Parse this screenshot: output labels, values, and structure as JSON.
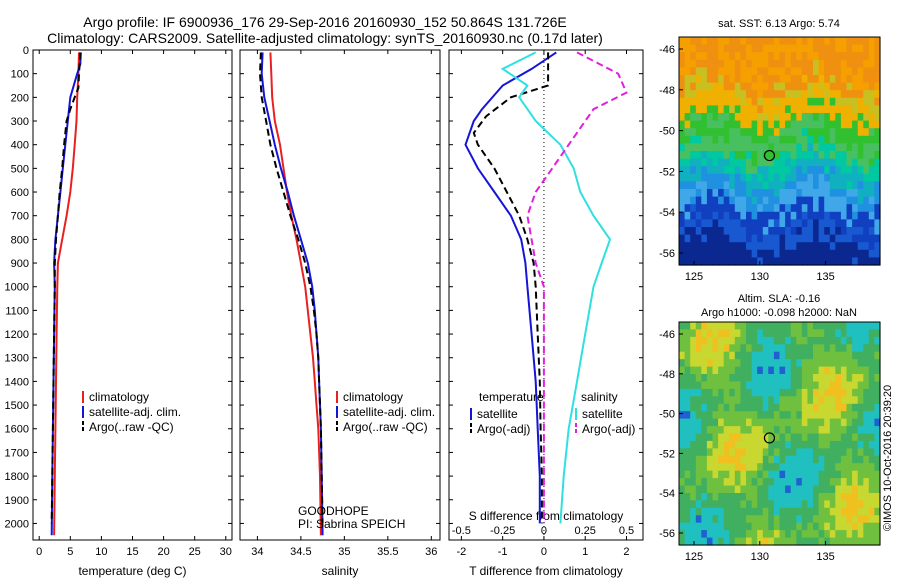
{
  "header": {
    "title_line1": "Argo profile: IF 6900936_176 29-Sep-2016 20160930_152 50.864S 131.726E",
    "title_line2": "Climatology: CARS2009. Satellite-adjusted climatology: synTS_20160930.nc (0.17d later)"
  },
  "colors": {
    "climatology": "#e82020",
    "satellite": "#1515d8",
    "argo": "#000000",
    "sal_satellite": "#30e0e0",
    "sal_argo": "#e020e0"
  },
  "chart_data": [
    {
      "type": "line",
      "xlabel": "temperature (deg C)",
      "ylabel": "",
      "xlim": [
        -1,
        31
      ],
      "ylim": [
        2070,
        0
      ],
      "x_ticks": [
        "0",
        "5",
        "10",
        "15",
        "20",
        "25",
        "30"
      ],
      "y_ticks": [
        "0",
        "100",
        "200",
        "300",
        "400",
        "500",
        "600",
        "700",
        "800",
        "900",
        "1000",
        "1100",
        "1200",
        "1300",
        "1400",
        "1500",
        "1600",
        "1700",
        "1800",
        "1900",
        "2000"
      ],
      "legend_position": "lower-center",
      "series": [
        {
          "name": "climatology",
          "color": "#e82020",
          "dash": "solid",
          "points": [
            [
              6.4,
              10
            ],
            [
              6.3,
              100
            ],
            [
              6.1,
              200
            ],
            [
              6.0,
              300
            ],
            [
              5.7,
              400
            ],
            [
              5.4,
              500
            ],
            [
              5.0,
              600
            ],
            [
              4.4,
              700
            ],
            [
              3.7,
              800
            ],
            [
              3.0,
              900
            ],
            [
              2.9,
              1000
            ],
            [
              2.8,
              1200
            ],
            [
              2.7,
              1400
            ],
            [
              2.6,
              1600
            ],
            [
              2.5,
              1800
            ],
            [
              2.4,
              2050
            ]
          ]
        },
        {
          "name": "satellite-adj. clim.",
          "color": "#1515d8",
          "dash": "solid",
          "points": [
            [
              6.7,
              10
            ],
            [
              6.6,
              60
            ],
            [
              6.1,
              100
            ],
            [
              5.0,
              200
            ],
            [
              4.6,
              300
            ],
            [
              4.2,
              400
            ],
            [
              3.8,
              500
            ],
            [
              3.4,
              600
            ],
            [
              3.0,
              700
            ],
            [
              2.6,
              800
            ],
            [
              2.4,
              900
            ],
            [
              2.5,
              1000
            ],
            [
              2.4,
              1200
            ],
            [
              2.3,
              1400
            ],
            [
              2.2,
              1600
            ],
            [
              2.1,
              1800
            ],
            [
              2.0,
              2050
            ]
          ]
        },
        {
          "name": "Argo(..raw -QC)",
          "color": "#000000",
          "dash": "dashed",
          "points": [
            [
              6.6,
              10
            ],
            [
              6.4,
              100
            ],
            [
              6.3,
              160
            ],
            [
              5.7,
              200
            ],
            [
              5.0,
              250
            ],
            [
              4.4,
              300
            ],
            [
              4.0,
              400
            ],
            [
              3.7,
              500
            ],
            [
              3.3,
              600
            ],
            [
              3.0,
              700
            ],
            [
              2.7,
              800
            ],
            [
              2.5,
              900
            ],
            [
              2.5,
              1000
            ],
            [
              2.4,
              1200
            ],
            [
              2.3,
              1400
            ],
            [
              2.2,
              1600
            ],
            [
              2.1,
              1800
            ],
            [
              2.0,
              2000
            ]
          ]
        }
      ],
      "legend": [
        "climatology",
        "satellite-adj. clim.",
        "Argo(..raw -QC)"
      ]
    },
    {
      "type": "line",
      "xlabel": "salinity",
      "xlim": [
        33.8,
        36.1
      ],
      "ylim": [
        2070,
        0
      ],
      "x_ticks": [
        "34",
        "34.5",
        "35",
        "35.5",
        "36"
      ],
      "legend_position": "lower-center",
      "series": [
        {
          "name": "climatology",
          "color": "#e82020",
          "dash": "solid",
          "points": [
            [
              34.15,
              10
            ],
            [
              34.16,
              100
            ],
            [
              34.17,
              200
            ],
            [
              34.2,
              300
            ],
            [
              34.26,
              400
            ],
            [
              34.3,
              500
            ],
            [
              34.34,
              600
            ],
            [
              34.39,
              700
            ],
            [
              34.45,
              800
            ],
            [
              34.5,
              900
            ],
            [
              34.55,
              1000
            ],
            [
              34.58,
              1100
            ],
            [
              34.61,
              1200
            ],
            [
              34.64,
              1300
            ],
            [
              34.66,
              1400
            ],
            [
              34.68,
              1500
            ],
            [
              34.7,
              1600
            ],
            [
              34.72,
              1800
            ],
            [
              34.73,
              2050
            ]
          ]
        },
        {
          "name": "satellite-adj. clim.",
          "color": "#1515d8",
          "dash": "solid",
          "points": [
            [
              34.06,
              10
            ],
            [
              34.05,
              100
            ],
            [
              34.08,
              200
            ],
            [
              34.14,
              300
            ],
            [
              34.2,
              400
            ],
            [
              34.27,
              500
            ],
            [
              34.35,
              600
            ],
            [
              34.42,
              700
            ],
            [
              34.5,
              800
            ],
            [
              34.58,
              900
            ],
            [
              34.63,
              1000
            ],
            [
              34.66,
              1100
            ],
            [
              34.68,
              1200
            ],
            [
              34.7,
              1300
            ],
            [
              34.71,
              1400
            ],
            [
              34.72,
              1500
            ],
            [
              34.73,
              1600
            ],
            [
              34.74,
              1800
            ],
            [
              34.75,
              2050
            ]
          ]
        },
        {
          "name": "Argo(..raw -QC)",
          "color": "#000000",
          "dash": "dashed",
          "points": [
            [
              34.04,
              10
            ],
            [
              34.03,
              100
            ],
            [
              34.05,
              200
            ],
            [
              34.1,
              300
            ],
            [
              34.15,
              400
            ],
            [
              34.22,
              500
            ],
            [
              34.3,
              600
            ],
            [
              34.38,
              700
            ],
            [
              34.47,
              800
            ],
            [
              34.55,
              900
            ],
            [
              34.61,
              1000
            ],
            [
              34.65,
              1100
            ],
            [
              34.68,
              1200
            ],
            [
              34.7,
              1300
            ],
            [
              34.71,
              1400
            ],
            [
              34.72,
              1500
            ],
            [
              34.73,
              1600
            ],
            [
              34.74,
              1800
            ],
            [
              34.75,
              2000
            ]
          ]
        }
      ],
      "legend": [
        "climatology",
        "satellite-adj. clim.",
        "Argo(..raw -QC)"
      ],
      "annotation_line1": "GOODHOPE",
      "annotation_line2": "PI: Sabrina SPEICH"
    },
    {
      "type": "line",
      "xlabel": "T difference from climatology",
      "top_xlabel": "S difference from climatology",
      "xlim": [
        -2.3,
        2.4
      ],
      "ylim": [
        2070,
        0
      ],
      "x_ticks": [
        "-2",
        "-1",
        "0",
        "1",
        "2"
      ],
      "top_x_ticks": [
        "-0.5",
        "-0.25",
        "0",
        "0.25",
        "0.5"
      ],
      "legend_position": "lower-center",
      "legend_titles": [
        "temperature",
        "salinity"
      ],
      "series": [
        {
          "name": "satellite",
          "group": "temperature",
          "color": "#1515d8",
          "dash": "solid",
          "points": [
            [
              0.3,
              10
            ],
            [
              -0.3,
              80
            ],
            [
              -1.0,
              150
            ],
            [
              -1.5,
              250
            ],
            [
              -1.7,
              300
            ],
            [
              -1.9,
              400
            ],
            [
              -1.6,
              500
            ],
            [
              -1.2,
              600
            ],
            [
              -0.8,
              700
            ],
            [
              -0.55,
              800
            ],
            [
              -0.45,
              900
            ],
            [
              -0.4,
              1000
            ],
            [
              -0.3,
              1200
            ],
            [
              -0.2,
              1400
            ],
            [
              -0.15,
              1600
            ],
            [
              -0.1,
              1800
            ],
            [
              -0.1,
              2000
            ]
          ]
        },
        {
          "name": "Argo(-adj)",
          "group": "temperature",
          "color": "#000000",
          "dash": "dashed",
          "points": [
            [
              0.1,
              10
            ],
            [
              0.1,
              150
            ],
            [
              -0.8,
              200
            ],
            [
              -1.4,
              280
            ],
            [
              -1.7,
              350
            ],
            [
              -1.6,
              400
            ],
            [
              -1.2,
              500
            ],
            [
              -0.9,
              600
            ],
            [
              -0.6,
              700
            ],
            [
              -0.4,
              800
            ],
            [
              -0.25,
              900
            ],
            [
              -0.2,
              1000
            ],
            [
              -0.15,
              1200
            ],
            [
              -0.1,
              1400
            ],
            [
              -0.08,
              1600
            ],
            [
              -0.05,
              1800
            ],
            [
              -0.05,
              2000
            ]
          ]
        },
        {
          "name": "satellite",
          "group": "salinity",
          "color": "#30e0e0",
          "dash": "solid",
          "points": [
            [
              -0.05,
              10
            ],
            [
              -0.25,
              80
            ],
            [
              -0.1,
              150
            ],
            [
              -0.15,
              200
            ],
            [
              -0.05,
              300
            ],
            [
              0.1,
              400
            ],
            [
              0.18,
              500
            ],
            [
              0.22,
              600
            ],
            [
              0.3,
              700
            ],
            [
              0.4,
              800
            ],
            [
              0.35,
              900
            ],
            [
              0.3,
              1000
            ],
            [
              0.25,
              1200
            ],
            [
              0.2,
              1400
            ],
            [
              0.15,
              1600
            ],
            [
              0.12,
              1800
            ],
            [
              0.1,
              2000
            ]
          ]
        },
        {
          "name": "Argo(-adj)",
          "group": "salinity",
          "color": "#e020e0",
          "dash": "dashed",
          "points": [
            [
              0.2,
              10
            ],
            [
              0.45,
              100
            ],
            [
              0.5,
              180
            ],
            [
              0.3,
              250
            ],
            [
              0.25,
              300
            ],
            [
              0.15,
              400
            ],
            [
              0.05,
              500
            ],
            [
              -0.05,
              600
            ],
            [
              -0.1,
              700
            ],
            [
              -0.05,
              900
            ],
            [
              0.0,
              1000
            ],
            [
              0.0,
              1200
            ],
            [
              0.0,
              1400
            ],
            [
              0.0,
              1600
            ],
            [
              0.0,
              1800
            ],
            [
              0.0,
              2000
            ]
          ]
        }
      ]
    }
  ],
  "maps": {
    "top": {
      "title": "sat. SST: 6.13 Argo: 5.74",
      "lat_ticks": [
        "-46",
        "-48",
        "-50",
        "-52",
        "-54",
        "-56"
      ],
      "lon_ticks": [
        "125",
        "130",
        "135"
      ]
    },
    "bottom": {
      "title_line1": "Altim. SLA: -0.16",
      "title_line2": "Argo h1000: -0.098 h2000: NaN",
      "lat_ticks": [
        "-46",
        "-48",
        "-50",
        "-52",
        "-54",
        "-56"
      ],
      "lon_ticks": [
        "125",
        "130",
        "135"
      ]
    },
    "credit": "©IMOS 10-Oct-2016 20:39:20"
  }
}
